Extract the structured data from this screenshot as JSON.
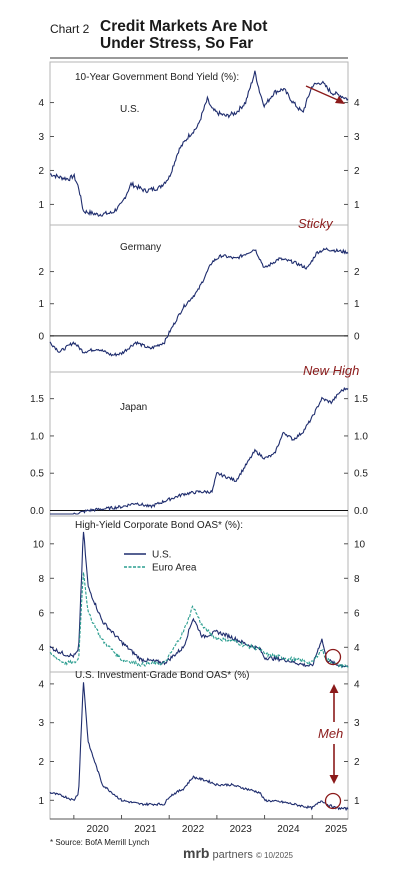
{
  "header": {
    "chart_label": "Chart 2",
    "title_line1": "Credit Markets Are Not",
    "title_line2": "Under Stress, So Far"
  },
  "footer": {
    "source": "* Source: BofA Merrill Lynch",
    "brand_name": "mrb",
    "brand_rest": " partners",
    "brand_date": "© 10/2025"
  },
  "colors": {
    "us": "#1f2d6e",
    "euro": "#2a9d8f",
    "annotation": "#8b1a1a"
  },
  "chart_data": [
    {
      "type": "line",
      "title": "10-Year Government Bond Yield (%):",
      "label": "U.S.",
      "ylim": [
        0.6,
        4.9
      ],
      "yticks": [
        1,
        2,
        3,
        4
      ],
      "annotation_arrow": "down-right",
      "series": [
        {
          "x": [
            2019.5,
            2019.7,
            2019.9,
            2020.0,
            2020.1,
            2020.2,
            2020.5,
            2020.8,
            2021.0,
            2021.2,
            2021.5,
            2021.8,
            2022.0,
            2022.2,
            2022.4,
            2022.6,
            2022.8,
            2022.9,
            2023.0,
            2023.2,
            2023.4,
            2023.6,
            2023.8,
            2023.9,
            2024.0,
            2024.2,
            2024.4,
            2024.6,
            2024.8,
            2025.0,
            2025.2,
            2025.4,
            2025.6,
            2025.75
          ],
          "values": [
            1.9,
            1.8,
            1.75,
            1.85,
            1.5,
            0.8,
            0.7,
            0.75,
            1.0,
            1.6,
            1.4,
            1.5,
            1.8,
            2.6,
            3.0,
            3.3,
            4.1,
            3.8,
            3.7,
            3.6,
            3.7,
            4.0,
            4.9,
            4.3,
            3.9,
            4.3,
            4.4,
            4.0,
            3.7,
            4.5,
            4.6,
            4.3,
            4.2,
            4.1
          ]
        }
      ]
    },
    {
      "type": "line",
      "label": "Germany",
      "annotation": "Sticky",
      "ylim": [
        -1.0,
        3.2
      ],
      "yticks": [
        0,
        1,
        2
      ],
      "zero_line": true,
      "series": [
        {
          "x": [
            2019.5,
            2019.7,
            2019.9,
            2020.0,
            2020.2,
            2020.5,
            2020.8,
            2021.0,
            2021.3,
            2021.6,
            2021.9,
            2022.0,
            2022.3,
            2022.6,
            2022.9,
            2023.1,
            2023.4,
            2023.8,
            2024.0,
            2024.3,
            2024.6,
            2024.9,
            2025.1,
            2025.3,
            2025.5,
            2025.75
          ],
          "values": [
            -0.2,
            -0.5,
            -0.3,
            -0.2,
            -0.5,
            -0.4,
            -0.6,
            -0.55,
            -0.2,
            -0.4,
            -0.2,
            0.1,
            0.9,
            1.4,
            2.3,
            2.5,
            2.4,
            2.7,
            2.1,
            2.4,
            2.3,
            2.1,
            2.6,
            2.7,
            2.65,
            2.6
          ]
        }
      ]
    },
    {
      "type": "line",
      "label": "Japan",
      "annotation": "New High",
      "ylim": [
        -0.02,
        1.75
      ],
      "yticks": [
        0.0,
        0.5,
        1.0,
        1.5
      ],
      "zero_line": true,
      "series": [
        {
          "x": [
            2019.5,
            2019.7,
            2020.0,
            2020.3,
            2020.6,
            2021.0,
            2021.3,
            2021.6,
            2022.0,
            2022.3,
            2022.6,
            2022.9,
            2023.0,
            2023.2,
            2023.4,
            2023.6,
            2023.8,
            2024.0,
            2024.2,
            2024.4,
            2024.6,
            2024.8,
            2025.0,
            2025.2,
            2025.4,
            2025.6,
            2025.75
          ],
          "values": [
            -0.1,
            -0.25,
            -0.05,
            0.0,
            0.02,
            0.05,
            0.1,
            0.05,
            0.15,
            0.22,
            0.25,
            0.25,
            0.5,
            0.45,
            0.4,
            0.6,
            0.8,
            0.7,
            0.75,
            1.05,
            0.95,
            1.05,
            1.25,
            1.5,
            1.45,
            1.6,
            1.65
          ]
        }
      ]
    },
    {
      "type": "line",
      "title": "High-Yield Corporate Bond OAS* (%):",
      "ylim": [
        2.8,
        10.8
      ],
      "yticks": [
        4,
        6,
        8,
        10
      ],
      "legend": [
        "U.S.",
        "Euro Area"
      ],
      "series": [
        {
          "name": "U.S.",
          "x": [
            2019.5,
            2019.8,
            2020.0,
            2020.1,
            2020.2,
            2020.3,
            2020.6,
            2021.0,
            2021.4,
            2021.9,
            2022.0,
            2022.3,
            2022.5,
            2022.7,
            2023.0,
            2023.3,
            2023.6,
            2023.9,
            2024.0,
            2024.4,
            2024.8,
            2025.0,
            2025.2,
            2025.3,
            2025.5,
            2025.75
          ],
          "values": [
            4.0,
            3.6,
            3.5,
            3.8,
            10.8,
            7.5,
            5.5,
            4.3,
            3.3,
            3.1,
            3.3,
            4.0,
            5.7,
            4.6,
            4.9,
            4.6,
            4.2,
            3.9,
            3.4,
            3.3,
            3.0,
            2.9,
            4.5,
            3.3,
            3.0,
            2.9
          ]
        },
        {
          "name": "Euro Area",
          "x": [
            2019.5,
            2019.8,
            2020.0,
            2020.1,
            2020.2,
            2020.3,
            2020.6,
            2021.0,
            2021.4,
            2021.9,
            2022.0,
            2022.3,
            2022.5,
            2022.7,
            2023.0,
            2023.3,
            2023.6,
            2023.9,
            2024.0,
            2024.4,
            2024.8,
            2025.0,
            2025.2,
            2025.3,
            2025.5,
            2025.75
          ],
          "values": [
            3.6,
            3.1,
            3.1,
            3.3,
            8.5,
            6.0,
            4.4,
            3.3,
            3.0,
            3.1,
            3.5,
            4.9,
            6.4,
            5.2,
            4.5,
            4.4,
            4.1,
            3.9,
            3.6,
            3.4,
            3.2,
            3.1,
            3.9,
            3.3,
            3.0,
            2.9
          ]
        }
      ]
    },
    {
      "type": "line",
      "title": "U.S. Investment-Grade Bond OAS* (%)",
      "annotation": "Meh",
      "ylim": [
        0.75,
        4.1
      ],
      "yticks": [
        1,
        2,
        3,
        4
      ],
      "series": [
        {
          "x": [
            2019.5,
            2019.8,
            2020.0,
            2020.1,
            2020.2,
            2020.3,
            2020.6,
            2021.0,
            2021.4,
            2021.9,
            2022.0,
            2022.3,
            2022.5,
            2022.8,
            2023.0,
            2023.3,
            2023.6,
            2023.9,
            2024.0,
            2024.4,
            2024.8,
            2025.0,
            2025.2,
            2025.3,
            2025.5,
            2025.75
          ],
          "values": [
            1.2,
            1.1,
            1.0,
            1.2,
            4.1,
            2.5,
            1.4,
            1.0,
            0.9,
            0.9,
            1.1,
            1.3,
            1.6,
            1.5,
            1.4,
            1.4,
            1.3,
            1.2,
            1.0,
            0.95,
            0.85,
            0.8,
            1.0,
            0.9,
            0.8,
            0.78
          ]
        }
      ]
    }
  ],
  "x_axis": {
    "xlim": [
      2019.5,
      2025.75
    ],
    "tick_labels": [
      "2020",
      "2021",
      "2022",
      "2023",
      "2024",
      "2025"
    ]
  }
}
